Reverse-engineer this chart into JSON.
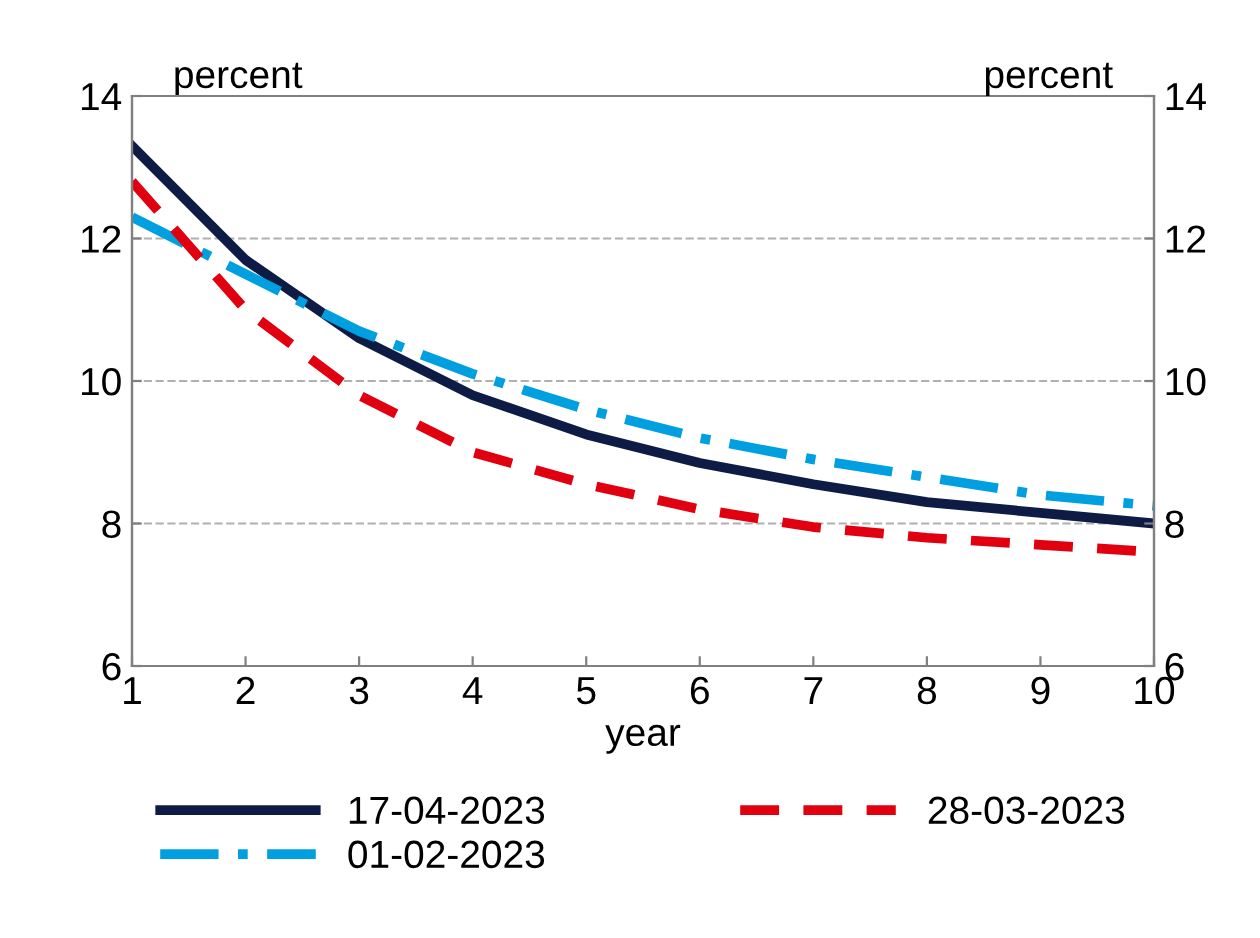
{
  "chart_data": {
    "type": "line",
    "xlabel": "year",
    "ylabel": "percent",
    "y2label": "percent",
    "x": [
      1,
      2,
      3,
      4,
      5,
      6,
      7,
      8,
      9,
      10
    ],
    "series": [
      {
        "name": "17-04-2023",
        "color": "#0d1b45",
        "line_style": "solid",
        "values": [
          13.3,
          11.7,
          10.6,
          9.8,
          9.25,
          8.85,
          8.55,
          8.3,
          8.15,
          8.0
        ]
      },
      {
        "name": "01-02-2023",
        "color": "#00a0e0",
        "line_style": "dashdot",
        "values": [
          12.3,
          11.5,
          10.7,
          10.1,
          9.6,
          9.2,
          8.9,
          8.65,
          8.4,
          8.25
        ]
      },
      {
        "name": "28-03-2023",
        "color": "#e0000f",
        "line_style": "dashed",
        "values": [
          12.8,
          11.0,
          9.8,
          9.0,
          8.55,
          8.2,
          7.95,
          7.8,
          7.7,
          7.6
        ]
      }
    ],
    "xlim": [
      1,
      10
    ],
    "xticks": [
      1,
      2,
      3,
      4,
      5,
      6,
      7,
      8,
      9,
      10
    ],
    "ylim": [
      6,
      14
    ],
    "yticks": [
      6,
      8,
      10,
      12,
      14
    ],
    "y2lim": [
      6,
      14
    ],
    "y2ticks": [
      6,
      8,
      10,
      12,
      14
    ],
    "grid": "y",
    "legend": "bottom",
    "marker": "none"
  }
}
